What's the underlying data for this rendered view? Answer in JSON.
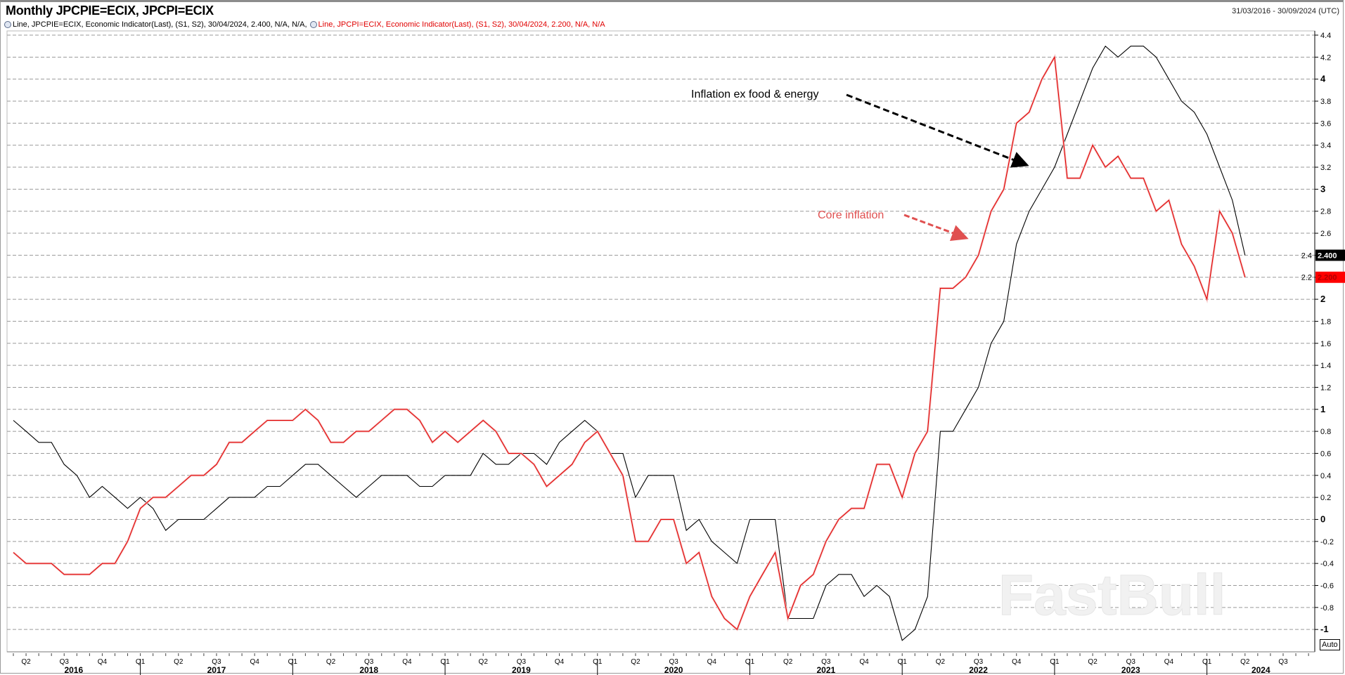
{
  "header": {
    "title": "Monthly JPCPIE=ECIX, JPCPI=ECIX",
    "date_range": "31/03/2016 - 30/09/2024 (UTC)"
  },
  "legend": {
    "items": [
      {
        "icon": "series-settings-icon",
        "text": "Line, JPCPIE=ECIX, Economic Indicator(Last), (S1, S2), 30/04/2024, 2.400, N/A, N/A,",
        "color": "#000000"
      },
      {
        "icon": "series-settings-icon",
        "text": "Line, JPCPI=ECIX, Economic Indicator(Last), (S1, S2), 30/04/2024, 2.200, N/A, N/A",
        "color": "#e00000"
      }
    ]
  },
  "annotations": {
    "black_label": "Inflation ex food & energy",
    "red_label": "Core inflation"
  },
  "watermark": "FastBull",
  "auto_label": "Auto",
  "chart_data": {
    "type": "line",
    "title": "Monthly JPCPIE=ECIX, JPCPI=ECIX",
    "xlabel": "",
    "ylabel": "",
    "ylim": [
      -1,
      4.4
    ],
    "grid": true,
    "y_axis_side": "right",
    "yticks": [
      "4.4",
      "4.2",
      "4",
      "3.8",
      "3.6",
      "3.4",
      "3.2",
      "3",
      "2.8",
      "2.6",
      "2.4",
      "2.2",
      "2",
      "1.8",
      "1.6",
      "1.4",
      "1.2",
      "1",
      "0.8",
      "0.6",
      "0.4",
      "0.2",
      "0",
      "-0.2",
      "-0.4",
      "-0.6",
      "-0.8",
      "-1"
    ],
    "x_range": [
      "2016-03",
      "2024-09"
    ],
    "quarter_ticks": [
      {
        "label": "Q2",
        "month": "2016-04"
      },
      {
        "label": "Q3",
        "month": "2016-07"
      },
      {
        "label": "Q4",
        "month": "2016-10"
      },
      {
        "label": "Q1",
        "month": "2017-01"
      },
      {
        "label": "Q2",
        "month": "2017-04"
      },
      {
        "label": "Q3",
        "month": "2017-07"
      },
      {
        "label": "Q4",
        "month": "2017-10"
      },
      {
        "label": "Q1",
        "month": "2018-01"
      },
      {
        "label": "Q2",
        "month": "2018-04"
      },
      {
        "label": "Q3",
        "month": "2018-07"
      },
      {
        "label": "Q4",
        "month": "2018-10"
      },
      {
        "label": "Q1",
        "month": "2019-01"
      },
      {
        "label": "Q2",
        "month": "2019-04"
      },
      {
        "label": "Q3",
        "month": "2019-07"
      },
      {
        "label": "Q4",
        "month": "2019-10"
      },
      {
        "label": "Q1",
        "month": "2020-01"
      },
      {
        "label": "Q2",
        "month": "2020-04"
      },
      {
        "label": "Q3",
        "month": "2020-07"
      },
      {
        "label": "Q4",
        "month": "2020-10"
      },
      {
        "label": "Q1",
        "month": "2021-01"
      },
      {
        "label": "Q2",
        "month": "2021-04"
      },
      {
        "label": "Q3",
        "month": "2021-07"
      },
      {
        "label": "Q4",
        "month": "2021-10"
      },
      {
        "label": "Q1",
        "month": "2022-01"
      },
      {
        "label": "Q2",
        "month": "2022-04"
      },
      {
        "label": "Q3",
        "month": "2022-07"
      },
      {
        "label": "Q4",
        "month": "2022-10"
      },
      {
        "label": "Q1",
        "month": "2023-01"
      },
      {
        "label": "Q2",
        "month": "2023-04"
      },
      {
        "label": "Q3",
        "month": "2023-07"
      },
      {
        "label": "Q4",
        "month": "2023-10"
      },
      {
        "label": "Q1",
        "month": "2024-01"
      },
      {
        "label": "Q2",
        "month": "2024-04"
      },
      {
        "label": "Q3",
        "month": "2024-07"
      }
    ],
    "year_labels": [
      "2016",
      "2017",
      "2018",
      "2019",
      "2020",
      "2021",
      "2022",
      "2023",
      "2024"
    ],
    "x": [
      "2016-03",
      "2016-04",
      "2016-05",
      "2016-06",
      "2016-07",
      "2016-08",
      "2016-09",
      "2016-10",
      "2016-11",
      "2016-12",
      "2017-01",
      "2017-02",
      "2017-03",
      "2017-04",
      "2017-05",
      "2017-06",
      "2017-07",
      "2017-08",
      "2017-09",
      "2017-10",
      "2017-11",
      "2017-12",
      "2018-01",
      "2018-02",
      "2018-03",
      "2018-04",
      "2018-05",
      "2018-06",
      "2018-07",
      "2018-08",
      "2018-09",
      "2018-10",
      "2018-11",
      "2018-12",
      "2019-01",
      "2019-02",
      "2019-03",
      "2019-04",
      "2019-05",
      "2019-06",
      "2019-07",
      "2019-08",
      "2019-09",
      "2019-10",
      "2019-11",
      "2019-12",
      "2020-01",
      "2020-02",
      "2020-03",
      "2020-04",
      "2020-05",
      "2020-06",
      "2020-07",
      "2020-08",
      "2020-09",
      "2020-10",
      "2020-11",
      "2020-12",
      "2021-01",
      "2021-02",
      "2021-03",
      "2021-04",
      "2021-05",
      "2021-06",
      "2021-07",
      "2021-08",
      "2021-09",
      "2021-10",
      "2021-11",
      "2021-12",
      "2022-01",
      "2022-02",
      "2022-03",
      "2022-04",
      "2022-05",
      "2022-06",
      "2022-07",
      "2022-08",
      "2022-09",
      "2022-10",
      "2022-11",
      "2022-12",
      "2023-01",
      "2023-02",
      "2023-03",
      "2023-04",
      "2023-05",
      "2023-06",
      "2023-07",
      "2023-08",
      "2023-09",
      "2023-10",
      "2023-11",
      "2023-12",
      "2024-01",
      "2024-02",
      "2024-03",
      "2024-04"
    ],
    "series": [
      {
        "name": "JPCPIE=ECIX",
        "color": "#000000",
        "last_label": "2.400",
        "values": [
          0.9,
          0.8,
          0.7,
          0.7,
          0.5,
          0.4,
          0.2,
          0.3,
          0.2,
          0.1,
          0.2,
          0.1,
          -0.1,
          0.0,
          0.0,
          0.0,
          0.1,
          0.2,
          0.2,
          0.2,
          0.3,
          0.3,
          0.4,
          0.5,
          0.5,
          0.4,
          0.3,
          0.2,
          0.3,
          0.4,
          0.4,
          0.4,
          0.3,
          0.3,
          0.4,
          0.4,
          0.4,
          0.6,
          0.5,
          0.5,
          0.6,
          0.6,
          0.5,
          0.7,
          0.8,
          0.9,
          0.8,
          0.6,
          0.6,
          0.2,
          0.4,
          0.4,
          0.4,
          -0.1,
          0.0,
          -0.2,
          -0.3,
          -0.4,
          0.0,
          0.0,
          0.0,
          -0.9,
          -0.9,
          -0.9,
          -0.6,
          -0.5,
          -0.5,
          -0.7,
          -0.6,
          -0.7,
          -1.1,
          -1.0,
          -0.7,
          0.8,
          0.8,
          1.0,
          1.2,
          1.6,
          1.8,
          2.5,
          2.8,
          3.0,
          3.2,
          3.5,
          3.8,
          4.1,
          4.3,
          4.2,
          4.3,
          4.3,
          4.2,
          4.0,
          3.8,
          3.7,
          3.5,
          3.2,
          2.9,
          2.4
        ]
      },
      {
        "name": "JPCPI=ECIX",
        "color": "#e00000",
        "last_label": "2.200",
        "values": [
          -0.3,
          -0.4,
          -0.4,
          -0.4,
          -0.5,
          -0.5,
          -0.5,
          -0.4,
          -0.4,
          -0.2,
          0.1,
          0.2,
          0.2,
          0.3,
          0.4,
          0.4,
          0.5,
          0.7,
          0.7,
          0.8,
          0.9,
          0.9,
          0.9,
          1.0,
          0.9,
          0.7,
          0.7,
          0.8,
          0.8,
          0.9,
          1.0,
          1.0,
          0.9,
          0.7,
          0.8,
          0.7,
          0.8,
          0.9,
          0.8,
          0.6,
          0.6,
          0.5,
          0.3,
          0.4,
          0.5,
          0.7,
          0.8,
          0.6,
          0.4,
          -0.2,
          -0.2,
          0.0,
          0.0,
          -0.4,
          -0.3,
          -0.7,
          -0.9,
          -1.0,
          -0.7,
          -0.5,
          -0.3,
          -0.9,
          -0.6,
          -0.5,
          -0.2,
          0.0,
          0.1,
          0.1,
          0.5,
          0.5,
          0.2,
          0.6,
          0.8,
          2.1,
          2.1,
          2.2,
          2.4,
          2.8,
          3.0,
          3.6,
          3.7,
          4.0,
          4.2,
          3.1,
          3.1,
          3.4,
          3.2,
          3.3,
          3.1,
          3.1,
          2.8,
          2.9,
          2.5,
          2.3,
          2.0,
          2.8,
          2.6,
          2.2
        ]
      }
    ]
  }
}
